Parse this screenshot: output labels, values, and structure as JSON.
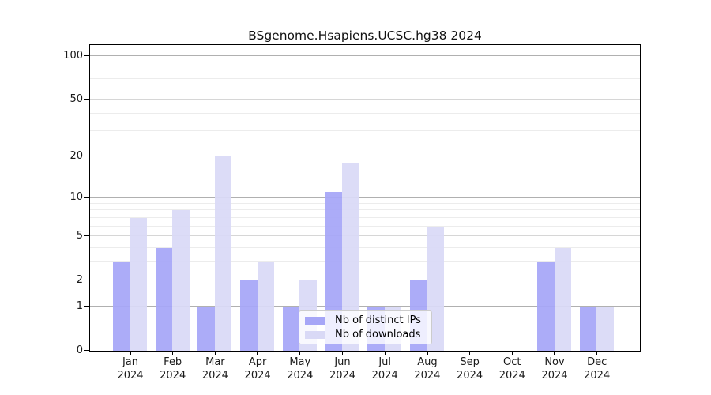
{
  "title": "BSgenome.Hsapiens.UCSC.hg38 2024",
  "chart_data": {
    "type": "bar",
    "title": "BSgenome.Hsapiens.UCSC.hg38 2024",
    "months": [
      "Jan",
      "Feb",
      "Mar",
      "Apr",
      "May",
      "Jun",
      "Jul",
      "Aug",
      "Sep",
      "Oct",
      "Nov",
      "Dec"
    ],
    "year": "2024",
    "categories": [
      "Jan 2024",
      "Feb 2024",
      "Mar 2024",
      "Apr 2024",
      "May 2024",
      "Jun 2024",
      "Jul 2024",
      "Aug 2024",
      "Sep 2024",
      "Oct 2024",
      "Nov 2024",
      "Dec 2024"
    ],
    "series": [
      {
        "name": "Nb of distinct IPs",
        "color": "#a6a6f7",
        "values": [
          3,
          4,
          1,
          2,
          1,
          11,
          1,
          2,
          0,
          0,
          3,
          1
        ]
      },
      {
        "name": "Nb of downloads",
        "color": "#d9d9f6",
        "values": [
          7,
          8,
          20,
          3,
          2,
          18,
          1,
          6,
          0,
          0,
          4,
          1
        ]
      }
    ],
    "yscale": "log1p",
    "ylim": [
      0,
      100
    ],
    "yticks": [
      0,
      1,
      2,
      5,
      10,
      20,
      50,
      100
    ],
    "ytick_labels": [
      "0",
      "1",
      "2",
      "5",
      "10",
      "20",
      "50",
      "100"
    ],
    "minor_gridlines": [
      3,
      4,
      6,
      7,
      8,
      9,
      30,
      40,
      60,
      70,
      80,
      90
    ],
    "grid": true,
    "legend_position": "inside-bottom-center",
    "colors": {
      "frame": "#000000",
      "major_grid": "#b0b0b0",
      "mid_grid": "#d6d6d6",
      "minor_grid": "#ececec",
      "text": "#1a1a1a",
      "legend_border": "#cccccc"
    }
  }
}
